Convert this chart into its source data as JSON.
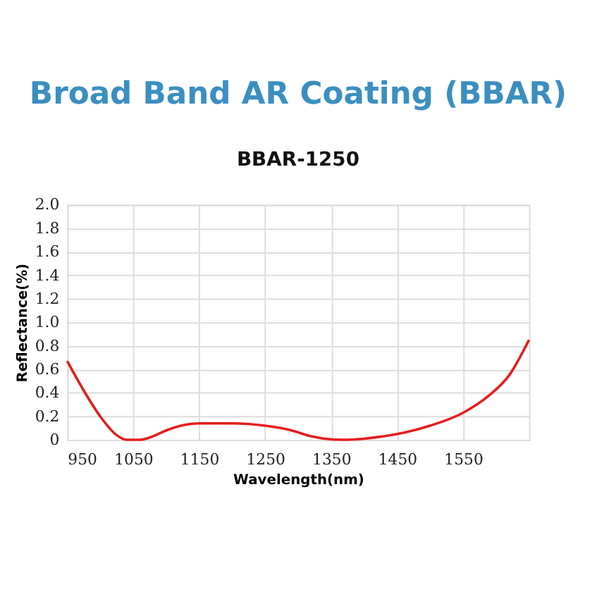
{
  "chart_data": {
    "type": "line",
    "title": "Broad  Band AR Coating (BBAR)",
    "subtitle": "BBAR-1250",
    "xlabel": "Wavelength(nm)",
    "ylabel": "Reflectance(%)",
    "x": [
      950,
      975,
      1000,
      1025,
      1040,
      1060,
      1080,
      1100,
      1130,
      1150,
      1200,
      1250,
      1290,
      1320,
      1340,
      1370,
      1400,
      1430,
      1460,
      1500,
      1550,
      1590,
      1620,
      1650
    ],
    "series": [
      {
        "color": "#e41e1e",
        "values": [
          0.67,
          0.42,
          0.2,
          0.04,
          0.0,
          0.0,
          0.03,
          0.08,
          0.13,
          0.14,
          0.14,
          0.12,
          0.08,
          0.03,
          0.01,
          0.0,
          0.01,
          0.03,
          0.06,
          0.12,
          0.23,
          0.38,
          0.55,
          0.85
        ]
      }
    ],
    "xlim": [
      950,
      1650
    ],
    "xticks": [
      950,
      1050,
      1150,
      1250,
      1350,
      1450,
      1550
    ],
    "ylim": [
      0,
      2.0
    ],
    "yticks": [
      0,
      {
        "value": 0.2,
        "label": "0.2"
      },
      {
        "value": 0.4,
        "label": "0.4"
      },
      {
        "value": 0.6,
        "label": "0.6"
      },
      {
        "value": 0.8,
        "label": "0.8"
      },
      {
        "value": 1.0,
        "label": "1.0"
      },
      {
        "value": 1.2,
        "label": "1.2"
      },
      {
        "value": 1.4,
        "label": "1.4"
      },
      {
        "value": 1.6,
        "label": "1.6"
      },
      {
        "value": 1.8,
        "label": "1.8"
      },
      {
        "value": 2.0,
        "label": "2.0"
      }
    ],
    "grid": true,
    "marker": "none",
    "line_style": "solid"
  }
}
